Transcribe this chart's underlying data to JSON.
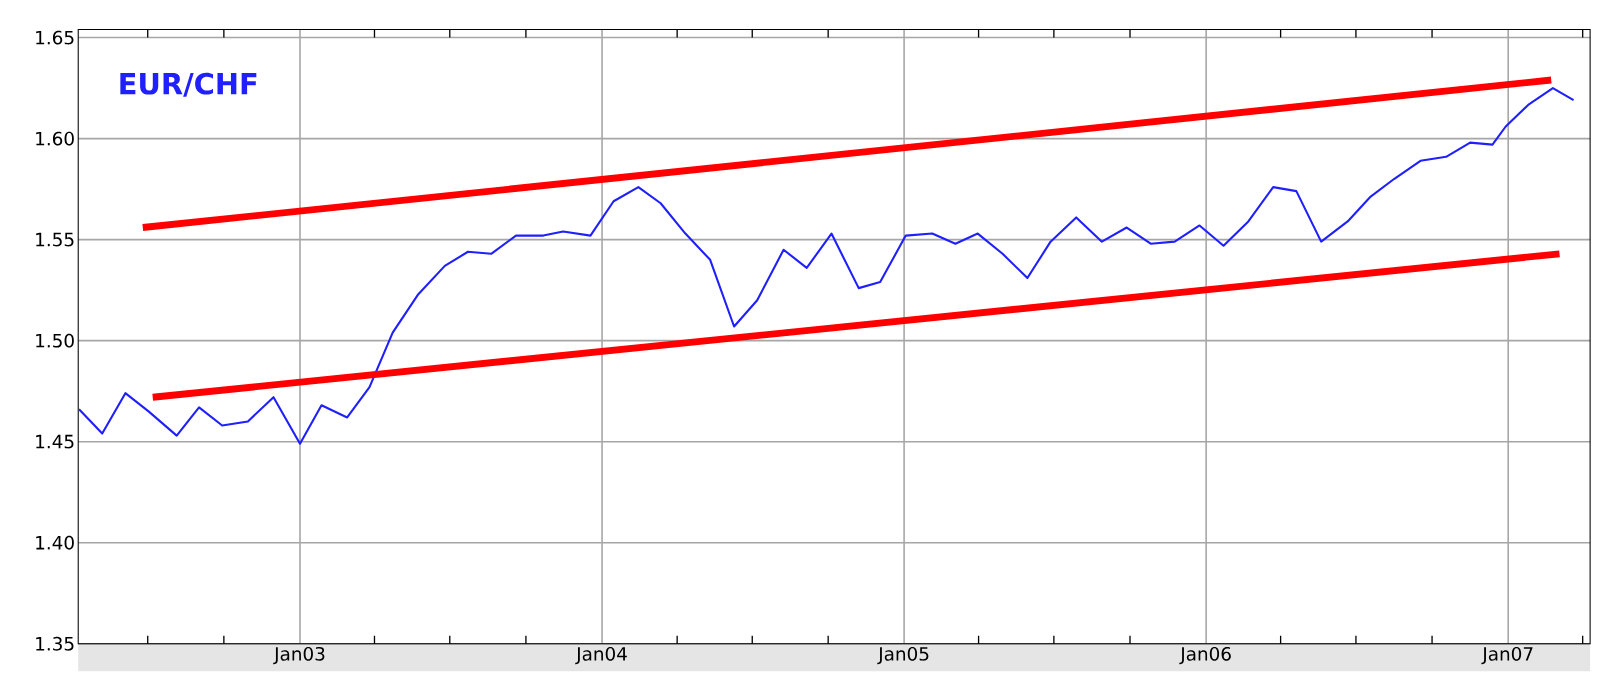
{
  "chart_data": {
    "type": "line",
    "xlim": [
      "2002-04-08",
      "2007-04-10"
    ],
    "ylim": [
      1.35,
      1.654
    ],
    "xticks": [
      {
        "value": "2002-07-01",
        "label": null
      },
      {
        "value": "2002-10-01",
        "label": null
      },
      {
        "value": "2003-01-01",
        "label": "Jan03"
      },
      {
        "value": "2003-04-01",
        "label": null
      },
      {
        "value": "2003-07-01",
        "label": null
      },
      {
        "value": "2003-10-01",
        "label": null
      },
      {
        "value": "2004-01-01",
        "label": "Jan04"
      },
      {
        "value": "2004-04-01",
        "label": null
      },
      {
        "value": "2004-07-01",
        "label": null
      },
      {
        "value": "2004-10-01",
        "label": null
      },
      {
        "value": "2005-01-01",
        "label": "Jan05"
      },
      {
        "value": "2005-04-01",
        "label": null
      },
      {
        "value": "2005-07-01",
        "label": null
      },
      {
        "value": "2005-10-01",
        "label": null
      },
      {
        "value": "2006-01-01",
        "label": "Jan06"
      },
      {
        "value": "2006-04-01",
        "label": null
      },
      {
        "value": "2006-07-01",
        "label": null
      },
      {
        "value": "2006-10-01",
        "label": null
      },
      {
        "value": "2007-01-01",
        "label": "Jan07"
      },
      {
        "value": "2007-04-01",
        "label": null
      }
    ],
    "yticks": [
      1.35,
      {
        "value": 1.4,
        "label": "1.40"
      },
      1.45,
      {
        "value": 1.5,
        "label": "1.50"
      },
      1.55,
      {
        "value": 1.6,
        "label": "1.60"
      },
      1.65
    ],
    "grid": true,
    "series": [
      {
        "name": "EUR/CHF",
        "color": "#2020ff",
        "x": [
          "2002-04-09",
          "2002-05-07",
          "2002-06-04",
          "2002-07-02",
          "2002-08-05",
          "2002-09-01",
          "2002-09-29",
          "2002-10-30",
          "2002-11-30",
          "2003-01-01",
          "2003-01-27",
          "2003-02-27",
          "2003-03-26",
          "2003-04-23",
          "2003-05-24",
          "2003-06-25",
          "2003-07-23",
          "2003-08-20",
          "2003-09-19",
          "2003-10-22",
          "2003-11-15",
          "2003-12-18",
          "2004-01-15",
          "2004-02-14",
          "2004-03-12",
          "2004-04-11",
          "2004-05-11",
          "2004-06-09",
          "2004-07-07",
          "2004-08-08",
          "2004-09-05",
          "2004-10-05",
          "2004-11-07",
          "2004-12-03",
          "2005-01-03",
          "2005-02-04",
          "2005-03-04",
          "2005-03-31",
          "2005-04-30",
          "2005-05-30",
          "2005-06-27",
          "2005-07-28",
          "2005-08-28",
          "2005-09-27",
          "2005-10-26",
          "2005-11-24",
          "2005-12-24",
          "2006-01-22",
          "2006-02-21",
          "2006-03-23",
          "2006-04-20",
          "2006-05-20",
          "2006-06-21",
          "2006-07-18",
          "2006-08-16",
          "2006-09-17",
          "2006-10-18",
          "2006-11-16",
          "2006-12-13",
          "2006-12-29",
          "2007-01-26",
          "2007-02-24",
          "2007-03-21"
        ],
        "values": [
          1.466,
          1.454,
          1.474,
          1.465,
          1.453,
          1.467,
          1.458,
          1.46,
          1.472,
          1.449,
          1.468,
          1.462,
          1.477,
          1.504,
          1.523,
          1.537,
          1.544,
          1.543,
          1.552,
          1.552,
          1.554,
          1.552,
          1.569,
          1.576,
          1.568,
          1.553,
          1.54,
          1.507,
          1.52,
          1.545,
          1.536,
          1.553,
          1.526,
          1.529,
          1.552,
          1.553,
          1.548,
          1.553,
          1.543,
          1.531,
          1.549,
          1.561,
          1.549,
          1.556,
          1.548,
          1.549,
          1.557,
          1.547,
          1.559,
          1.576,
          1.574,
          1.549,
          1.559,
          1.571,
          1.58,
          1.589,
          1.591,
          1.598,
          1.597,
          1.606,
          1.617,
          1.625,
          1.619
        ]
      },
      {
        "type": "line",
        "color": "#ff0000",
        "x": [
          "2002-06-25",
          "2007-02-22"
        ],
        "values": [
          1.556,
          1.629
        ]
      },
      {
        "type": "line",
        "color": "#ff0000",
        "x": [
          "2002-07-07",
          "2007-03-04"
        ],
        "values": [
          1.472,
          1.543
        ]
      }
    ]
  }
}
